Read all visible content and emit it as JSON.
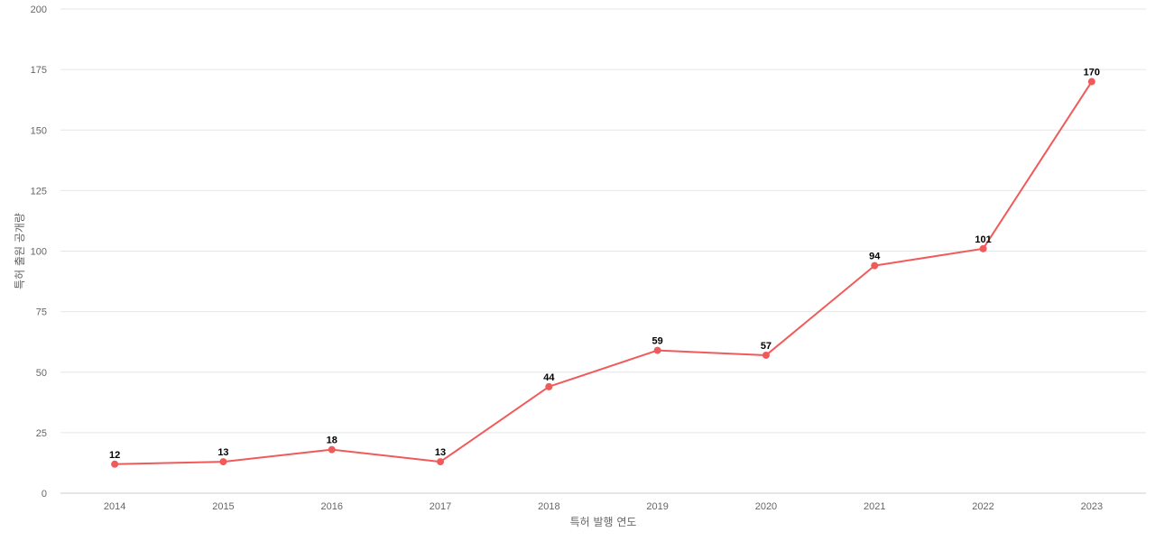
{
  "chart_data": {
    "type": "line",
    "title": "",
    "xlabel": "특허 발행 연도",
    "ylabel": "특허 출원 공개량",
    "categories": [
      "2014",
      "2015",
      "2016",
      "2017",
      "2018",
      "2019",
      "2020",
      "2021",
      "2022",
      "2023"
    ],
    "series": [
      {
        "color": "#f05a5a",
        "values": [
          12,
          13,
          18,
          13,
          44,
          59,
          57,
          94,
          101,
          170
        ]
      }
    ],
    "ylim": [
      0,
      200
    ],
    "yticks": [
      0,
      25,
      50,
      75,
      100,
      125,
      150,
      175,
      200
    ],
    "grid": true,
    "legend": "none",
    "data_labels": true
  }
}
